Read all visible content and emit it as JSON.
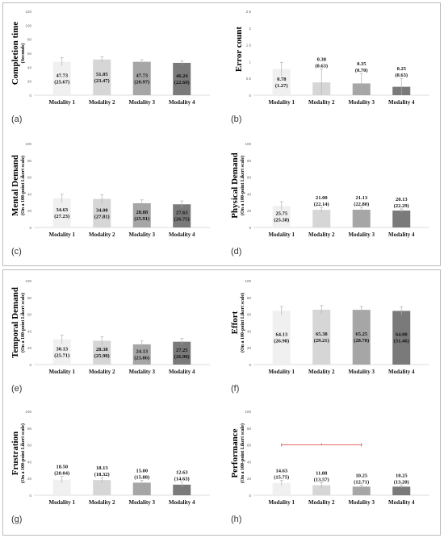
{
  "chart_data": [
    {
      "id": "a",
      "type": "bar",
      "panel_label": "(a)",
      "ylabel": "Completion time",
      "ylabel_sub": "(Seconds)",
      "ylim": [
        0,
        120
      ],
      "yticks": [
        0,
        20,
        40,
        60,
        80,
        100,
        120
      ],
      "categories": [
        "Modality 1",
        "Modality 2",
        "Modality 3",
        "Modality 4"
      ],
      "values": [
        47.73,
        51.05,
        47.73,
        46.24
      ],
      "errors": [
        6,
        4,
        3,
        3
      ],
      "labels": [
        "47.73",
        "51.05",
        "47.73",
        "46.24"
      ],
      "label_sd": [
        "(25.67)",
        "(23.47)",
        "(20.97)",
        "(22.60)"
      ],
      "colors": [
        "#f0f0f0",
        "#d6d6d6",
        "#a6a6a6",
        "#7a7a7a"
      ]
    },
    {
      "id": "b",
      "type": "bar",
      "panel_label": "(b)",
      "ylabel": "Error count",
      "ylabel_sub": "",
      "ylim": [
        0,
        2.5
      ],
      "yticks": [
        0,
        0.5,
        1,
        1.5,
        2,
        2.5
      ],
      "categories": [
        "Modality 1",
        "Modality 2",
        "Modality 3",
        "Modality 4"
      ],
      "values": [
        0.78,
        0.38,
        0.35,
        0.25
      ],
      "errors": [
        0.2,
        0.4,
        0.3,
        0.25
      ],
      "labels": [
        "0.78",
        "0.38",
        "0.35",
        "0.25"
      ],
      "label_sd": [
        "(1.27)",
        "(0.63)",
        "(0.70)",
        "(0.63)"
      ],
      "colors": [
        "#f0f0f0",
        "#d6d6d6",
        "#a6a6a6",
        "#7a7a7a"
      ]
    },
    {
      "id": "c",
      "type": "bar",
      "panel_label": "(c)",
      "ylabel": "Mental Demand",
      "ylabel_sub": "(On a 100-point Likert scale)",
      "ylim": [
        0,
        100
      ],
      "yticks": [
        0,
        20,
        40,
        60,
        80,
        100
      ],
      "categories": [
        "Modality 1",
        "Modality 2",
        "Modality 3",
        "Modality 4"
      ],
      "values": [
        34.63,
        34.0,
        28.88,
        27.63
      ],
      "errors": [
        5,
        5,
        4,
        4
      ],
      "labels": [
        "34.63",
        "34.00",
        "28.88",
        "27.63"
      ],
      "label_sd": [
        "(27.23)",
        "(27.81)",
        "(25.91)",
        "(26.75)"
      ],
      "colors": [
        "#f0f0f0",
        "#d6d6d6",
        "#a6a6a6",
        "#7a7a7a"
      ]
    },
    {
      "id": "d",
      "type": "bar",
      "panel_label": "(d)",
      "ylabel": "Physical Demand",
      "ylabel_sub": "(On a 100-point Likert scale)",
      "ylim": [
        0,
        100
      ],
      "yticks": [
        0,
        20,
        40,
        60,
        80,
        100
      ],
      "categories": [
        "Modality 1",
        "Modality 2",
        "Modality 3",
        "Modality 4"
      ],
      "values": [
        25.75,
        21.0,
        21.13,
        20.13
      ],
      "errors": [
        5,
        3,
        3,
        2
      ],
      "labels": [
        "25.75",
        "21.00",
        "21.13",
        "20.13"
      ],
      "label_sd": [
        "(25.38)",
        "(22.14)",
        "(22.80)",
        "(22.29)"
      ],
      "colors": [
        "#f0f0f0",
        "#d6d6d6",
        "#a6a6a6",
        "#7a7a7a"
      ]
    },
    {
      "id": "e",
      "type": "bar",
      "panel_label": "(e)",
      "ylabel": "Temporal Demand",
      "ylabel_sub": "(On a 100-point Likert scale)",
      "ylim": [
        0,
        100
      ],
      "yticks": [
        0,
        20,
        40,
        60,
        80,
        100
      ],
      "categories": [
        "Modality 1",
        "Modality 2",
        "Modality 3",
        "Modality 4"
      ],
      "values": [
        30.13,
        28.38,
        24.13,
        27.25
      ],
      "errors": [
        5,
        5,
        4,
        4
      ],
      "labels": [
        "30.13",
        "28.38",
        "24.13",
        "27.25"
      ],
      "label_sd": [
        "(25.71)",
        "(25.98)",
        "(23.86)",
        "(26.98)"
      ],
      "colors": [
        "#f0f0f0",
        "#d6d6d6",
        "#a6a6a6",
        "#7a7a7a"
      ]
    },
    {
      "id": "f",
      "type": "bar",
      "panel_label": "(f)",
      "ylabel": "Effort",
      "ylabel_sub": "(On a 100-point Likert scale)",
      "ylim": [
        0,
        100
      ],
      "yticks": [
        0,
        20,
        40,
        60,
        80,
        100
      ],
      "categories": [
        "Modality 1",
        "Modality 2",
        "Modality 3",
        "Modality 4"
      ],
      "values": [
        64.13,
        65.38,
        65.25,
        64.0
      ],
      "errors": [
        5,
        5,
        4,
        5
      ],
      "labels": [
        "64.13",
        "65.38",
        "65.25",
        "64.00"
      ],
      "label_sd": [
        "(26.98)",
        "(29.21)",
        "(28.78)",
        "(31.46)"
      ],
      "colors": [
        "#f0f0f0",
        "#d6d6d6",
        "#a6a6a6",
        "#7a7a7a"
      ]
    },
    {
      "id": "g",
      "type": "bar",
      "panel_label": "(g)",
      "ylabel": "Frustration",
      "ylabel_sub": "(On a 100-point Likert scale)",
      "ylim": [
        0,
        100
      ],
      "yticks": [
        0,
        20,
        40,
        60,
        80,
        100
      ],
      "categories": [
        "Modality 1",
        "Modality 2",
        "Modality 3",
        "Modality 4"
      ],
      "values": [
        18.5,
        18.13,
        15.0,
        12.63
      ],
      "errors": [
        4,
        3,
        3,
        3
      ],
      "labels": [
        "18.50",
        "18.13",
        "15.00",
        "12.63"
      ],
      "label_sd": [
        "(20.04)",
        "(18.32)",
        "(15.88)",
        "(14.63)"
      ],
      "colors": [
        "#f0f0f0",
        "#d6d6d6",
        "#a6a6a6",
        "#7a7a7a"
      ]
    },
    {
      "id": "h",
      "type": "bar",
      "panel_label": "(h)",
      "ylabel": "Performance",
      "ylabel_sub": "(On a 100-point Likert scale)",
      "ylim": [
        0,
        100
      ],
      "yticks": [
        0,
        20,
        40,
        60,
        80,
        100
      ],
      "categories": [
        "Modality 1",
        "Modality 2",
        "Modality 3",
        "Modality 4"
      ],
      "values": [
        14.63,
        11.88,
        10.25,
        10.25
      ],
      "errors": [
        3,
        3,
        2,
        2
      ],
      "labels": [
        "14.63",
        "11.88",
        "10.25",
        "10.25"
      ],
      "label_sd": [
        "(15.75)",
        "(13.57)",
        "(12.71)",
        "(13.20)"
      ],
      "colors": [
        "#f0f0f0",
        "#d6d6d6",
        "#a6a6a6",
        "#7a7a7a"
      ],
      "significance": {
        "from": "Modality 1",
        "to": "Modality 3",
        "y": 60,
        "marker": "*",
        "color": "#e03a3a"
      }
    }
  ]
}
